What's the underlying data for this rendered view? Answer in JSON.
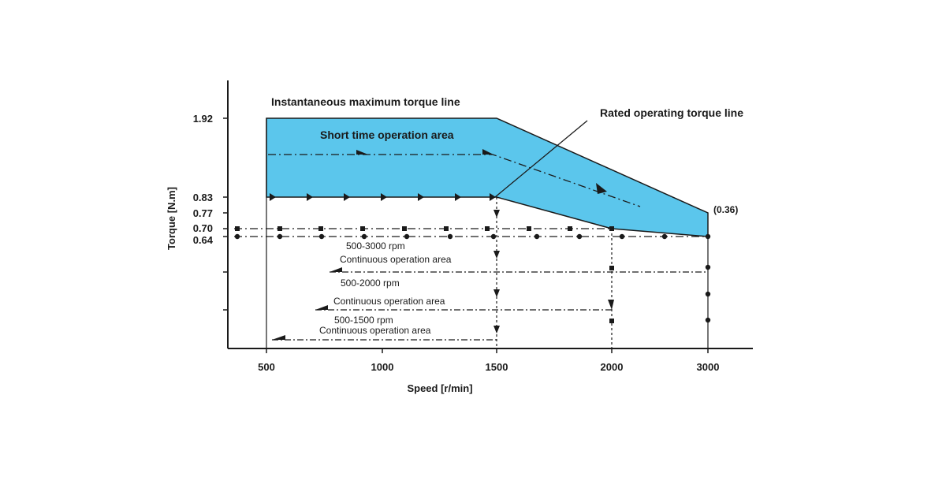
{
  "chart_data": {
    "type": "area",
    "xlabel": "Speed [r/min]",
    "ylabel": "Torque [N.m]",
    "x_tick_labels": [
      "500",
      "1000",
      "1500",
      "2000",
      "3000"
    ],
    "y_tick_labels": [
      "1.92",
      "0.83",
      "0.77",
      "0.70",
      "0.64"
    ],
    "annotations": {
      "instantaneous_max": "Instantaneous maximum torque line",
      "short_time_area": "Short time operation area",
      "rated_torque_line": "Rated operating torque line",
      "end_value": "(0.36)",
      "range_3000": "500-3000 rpm",
      "range_2000": "500-2000 rpm",
      "range_1500": "500-1500 rpm",
      "continuous_area": "Continuous operation area"
    },
    "series": [
      {
        "name": "Instantaneous maximum torque line",
        "x": [
          500,
          1500,
          3000
        ],
        "y": [
          1.92,
          1.92,
          0.77
        ]
      },
      {
        "name": "Rated operating torque line",
        "x": [
          500,
          1500,
          2000,
          3000
        ],
        "y": [
          0.83,
          0.83,
          0.7,
          0.64
        ]
      }
    ],
    "colors": {
      "short_time_fill": "#5bc6ec",
      "outline": "#1a1a1a"
    }
  }
}
